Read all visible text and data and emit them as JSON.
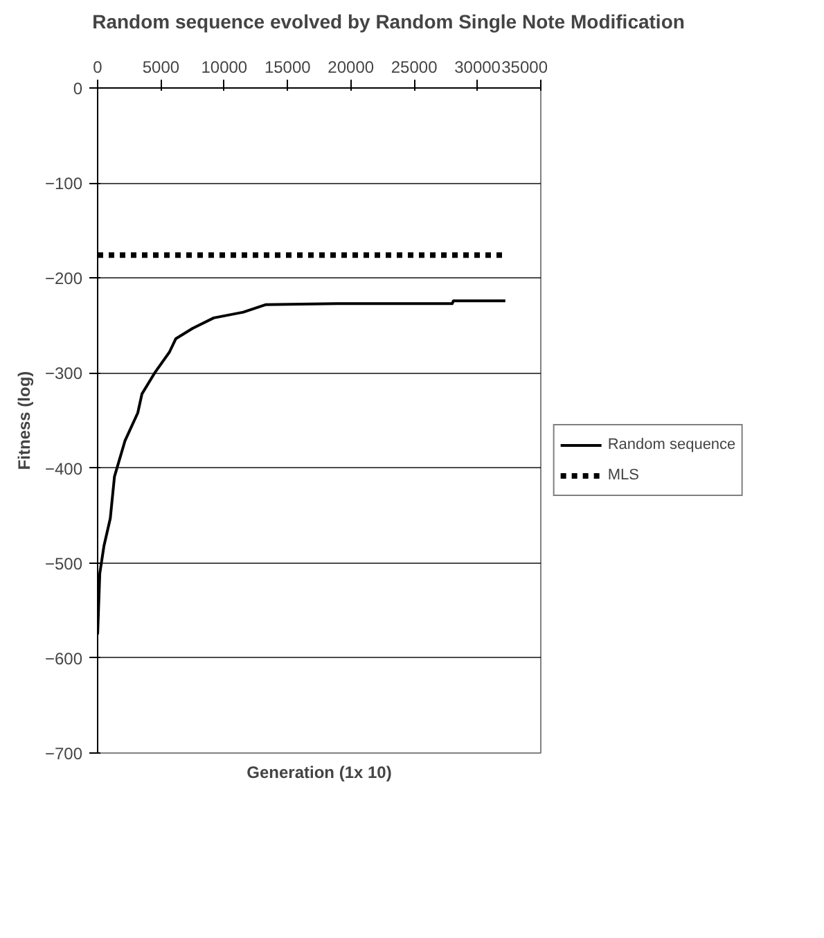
{
  "chart_data": {
    "type": "line",
    "title": "Random sequence evolved by Random Single Note Modification",
    "xlabel": "Generation (1x 10)",
    "ylabel": "Fitness (log)",
    "xlim": [
      0,
      35000
    ],
    "xticks": [
      0,
      5000,
      10000,
      15000,
      20000,
      25000,
      30000,
      35000
    ],
    "ylim": [
      -700,
      0
    ],
    "yticks": [
      0,
      -100,
      -200,
      -300,
      -400,
      -500,
      -600,
      -700
    ],
    "grid": "y",
    "legend": "right",
    "marker": "none",
    "series": [
      {
        "name": "Random sequence",
        "color": "#000000",
        "line_style": "solid",
        "x": [
          0,
          170,
          500,
          1000,
          1330,
          2170,
          3170,
          3500,
          4500,
          5670,
          6170,
          7500,
          9170,
          11500,
          13300,
          18900,
          28000,
          28100,
          32200
        ],
        "values": [
          -575,
          -511,
          -482,
          -453,
          -409,
          -371,
          -342,
          -322,
          -300,
          -278,
          -264,
          -253,
          -242,
          -236,
          -228,
          -227,
          -227,
          -224,
          -224
        ]
      },
      {
        "name": "MLS",
        "color": "#000000",
        "line_style": "dotted",
        "x": [
          0,
          32000
        ],
        "values": [
          -176,
          -176
        ]
      }
    ]
  }
}
